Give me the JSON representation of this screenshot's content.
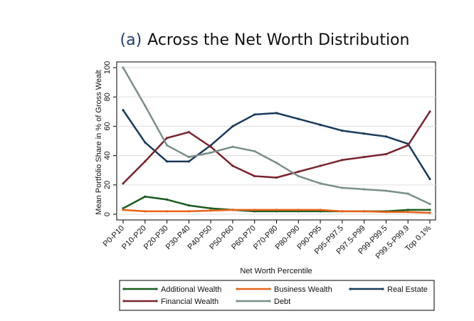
{
  "chart_data": {
    "type": "line",
    "title_prefix": "(a)",
    "title": "Across the Net Worth Distribution",
    "xlabel": "Net Worth Percentile",
    "ylabel": "Mean Portfolio Share in % of Gross Wealt",
    "ylim": [
      0,
      100
    ],
    "yticks": [
      0,
      20,
      40,
      60,
      80,
      100
    ],
    "grid": true,
    "legend_position": "bottom",
    "categories": [
      "P0-P10",
      "P10-P20",
      "P20-P30",
      "P30-P40",
      "P40-P50",
      "P50-P60",
      "P60-P70",
      "P70-P80",
      "P80-P90",
      "P90-P95",
      "P95-P97.5",
      "P97.5-P99",
      "P99-P99.5",
      "P99.5-P99.9",
      "Top 0.1%"
    ],
    "series": [
      {
        "name": "Additional Wealth",
        "color": "#1b5e20",
        "values": [
          4,
          12,
          10,
          6,
          4,
          3,
          2,
          2,
          2,
          2,
          2,
          2,
          2,
          3,
          3
        ]
      },
      {
        "name": "Business Wealth",
        "color": "#e8631a",
        "values": [
          3,
          2,
          2,
          2,
          2.5,
          3,
          3,
          3,
          3,
          3,
          2,
          2,
          1.5,
          1.5,
          1
        ]
      },
      {
        "name": "Real Estate",
        "color": "#1a3a5c",
        "values": [
          71,
          49,
          36,
          36,
          47,
          60,
          68,
          69,
          65,
          61,
          57,
          55,
          53,
          48,
          24
        ]
      },
      {
        "name": "Financial Wealth",
        "color": "#7a2430",
        "values": [
          21,
          36,
          52,
          56,
          46,
          33,
          26,
          25,
          29,
          33,
          37,
          39,
          41,
          47,
          70
        ]
      },
      {
        "name": "Debt",
        "color": "#7b8f8a",
        "values": [
          100,
          74,
          47,
          39,
          42,
          46,
          43,
          35,
          26,
          21,
          18,
          17,
          16,
          14,
          7
        ]
      }
    ]
  }
}
